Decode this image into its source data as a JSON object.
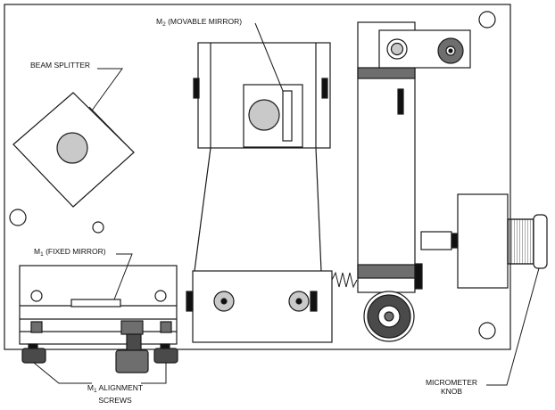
{
  "labels": {
    "beam_splitter": "BEAM SPLITTER",
    "m2_letter": "M",
    "m2_sub": "2",
    "m2_rest": " (MOVABLE MIRROR)",
    "m1_letter": "M",
    "m1_sub": "1",
    "m1_rest": " (FIXED MIRROR)",
    "m1_align_letter": "M",
    "m1_align_sub": "1",
    "m1_align_rest": " ALIGNMENT",
    "m1_align_line2": "SCREWS",
    "micrometer_line1": "MICROMETER",
    "micrometer_line2": "KNOB"
  },
  "colors": {
    "stroke": "#1a1a1a",
    "lens_gray": "#c9c9c9",
    "dark_gray": "#6e6e6e",
    "black": "#111111"
  }
}
